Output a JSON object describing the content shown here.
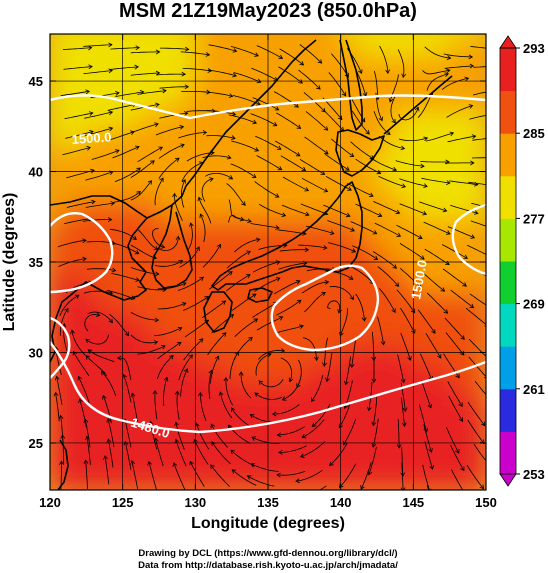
{
  "chart_data": {
    "type": "heatmap",
    "title": "MSM 21Z19May2023 (850.0hPa)",
    "xlabel": "Longitude (degrees)",
    "ylabel": "Latitude  (degrees)",
    "xlim": [
      120,
      150
    ],
    "ylim": [
      22.4,
      47.6
    ],
    "x_ticks": [
      120,
      125,
      130,
      135,
      140,
      145,
      150
    ],
    "y_ticks": [
      25,
      30,
      35,
      40,
      45
    ],
    "grid": true,
    "colorbar": {
      "min": 253,
      "max": 293,
      "ticks": [
        253,
        261,
        269,
        277,
        285,
        293
      ],
      "position": "right",
      "colors": [
        "#cc00cc",
        "#2a2ae0",
        "#00a0e8",
        "#00d8c0",
        "#10d030",
        "#a8e800",
        "#f0e000",
        "#f8a000",
        "#f05010",
        "#e82020"
      ]
    },
    "temperature_field_K": {
      "lon": [
        120,
        125,
        130,
        135,
        140,
        145,
        150
      ],
      "lat": [
        47.5,
        45,
        40,
        35,
        30,
        25,
        22.5
      ],
      "values": [
        [
          279,
          280,
          281,
          282,
          281,
          280,
          281
        ],
        [
          278,
          279,
          281,
          283,
          282,
          282,
          283
        ],
        [
          282,
          283,
          284,
          284,
          283,
          279,
          278
        ],
        [
          289,
          288,
          286,
          286,
          287,
          284,
          283
        ],
        [
          291,
          290,
          289,
          288,
          289,
          289,
          288
        ],
        [
          291,
          291,
          291,
          291,
          291,
          291,
          290
        ],
        [
          291,
          291,
          291,
          291,
          291,
          291,
          291
        ]
      ]
    },
    "contour_labels": [
      "1500.0",
      "1500.0",
      "1480.0"
    ]
  },
  "credits": {
    "line1": "Drawing by DCL (https://www.gfd-dennou.org/library/dcl/)",
    "line2": "Data from http://database.rish.kyoto-u.ac.jp/arch/jmadata/"
  }
}
